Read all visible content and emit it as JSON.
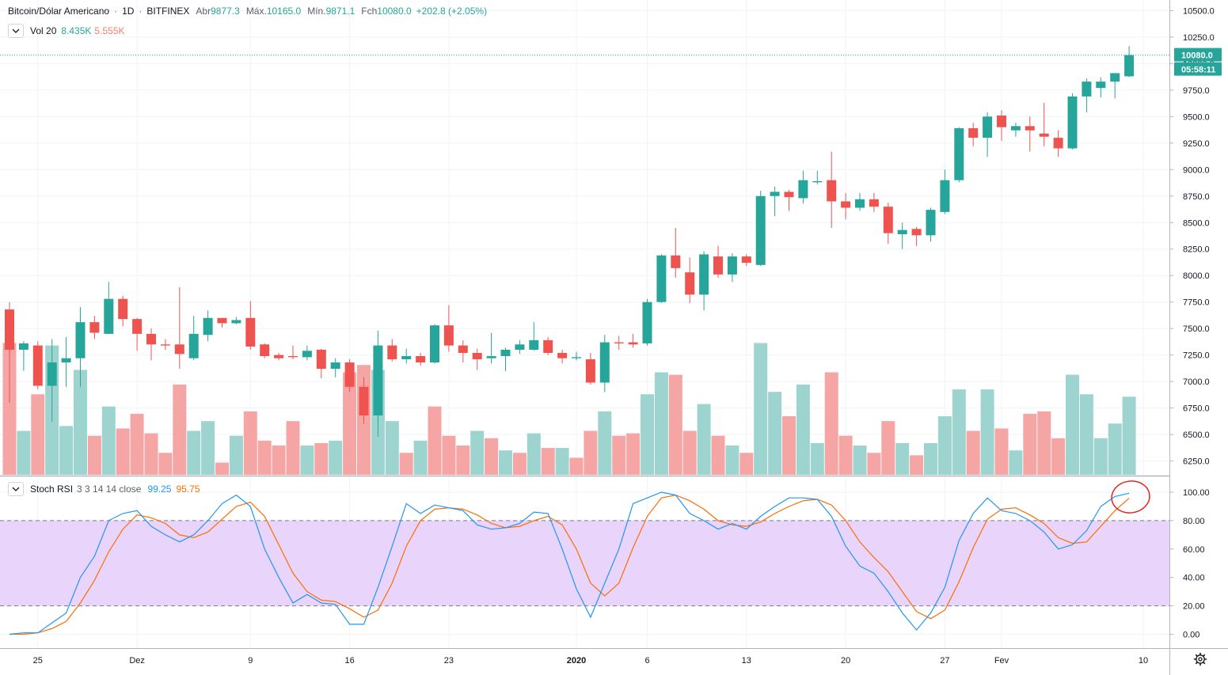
{
  "header": {
    "symbol": "Bitcoin/Dólar Americano",
    "interval": "1D",
    "exchange": "BITFINEX",
    "open_label": "Abr",
    "open": "9877.3",
    "high_label": "Máx.",
    "high": "10165.0",
    "low_label": "Mín.",
    "low": "9871.1",
    "close_label": "Fch",
    "close": "10080.0",
    "change": "+202.8 (+2.05%)"
  },
  "volume_legend": {
    "label": "Vol 20",
    "value1": "8.435K",
    "value2": "5.555K"
  },
  "rsi_legend": {
    "label": "Stoch RSI",
    "params": "3 3 14 14 close",
    "k_value": "99.25",
    "d_value": "95.75"
  },
  "colors": {
    "up": "#26a69a",
    "down": "#ef5350",
    "vol_up": "#9ed4cf",
    "vol_down": "#f5a6a4",
    "k_line": "#2196f3",
    "d_line": "#ff6d00",
    "band": "#e9d4fb",
    "annotation": "#e0261b"
  },
  "chart_data": [
    {
      "type": "candlestick",
      "price_axis_ticks": [
        "10500.0",
        "10250.0",
        "10000.0",
        "9750.0",
        "9500.0",
        "9250.0",
        "9000.0",
        "8750.0",
        "8500.0",
        "8250.0",
        "8000.0",
        "7750.0",
        "7500.0",
        "7250.0",
        "7000.0",
        "6750.0",
        "6500.0",
        "6250.0"
      ],
      "ylim": [
        6120,
        10600
      ],
      "last_price_label": "10080.0",
      "countdown_label": "05:58:11",
      "time_axis_labels": [
        {
          "index": 2,
          "label": "25"
        },
        {
          "index": 9,
          "label": "Dez"
        },
        {
          "index": 17,
          "label": "9"
        },
        {
          "index": 24,
          "label": "16"
        },
        {
          "index": 31,
          "label": "23"
        },
        {
          "index": 40,
          "label": "2020"
        },
        {
          "index": 45,
          "label": "6"
        },
        {
          "index": 52,
          "label": "13"
        },
        {
          "index": 59,
          "label": "20"
        },
        {
          "index": 66,
          "label": "27"
        },
        {
          "index": 70,
          "label": "Fev"
        },
        {
          "index": 80,
          "label": "10"
        }
      ],
      "candles": [
        [
          7680,
          7750,
          6800,
          7300
        ],
        [
          7300,
          7380,
          7100,
          7360
        ],
        [
          7340,
          7380,
          6930,
          6960
        ],
        [
          6960,
          7400,
          6620,
          7180
        ],
        [
          7180,
          7420,
          6950,
          7220
        ],
        [
          7220,
          7700,
          6950,
          7560
        ],
        [
          7560,
          7620,
          7400,
          7460
        ],
        [
          7450,
          7940,
          7450,
          7780
        ],
        [
          7780,
          7810,
          7520,
          7590
        ],
        [
          7590,
          7600,
          7290,
          7450
        ],
        [
          7450,
          7500,
          7200,
          7350
        ],
        [
          7350,
          7400,
          7300,
          7340
        ],
        [
          7350,
          7890,
          7120,
          7260
        ],
        [
          7220,
          7620,
          7200,
          7450
        ],
        [
          7440,
          7670,
          7380,
          7600
        ],
        [
          7600,
          7600,
          7510,
          7550
        ],
        [
          7550,
          7610,
          7540,
          7580
        ],
        [
          7600,
          7760,
          7300,
          7330
        ],
        [
          7350,
          7360,
          7220,
          7240
        ],
        [
          7250,
          7270,
          7200,
          7220
        ],
        [
          7240,
          7340,
          7210,
          7230
        ],
        [
          7230,
          7340,
          7200,
          7290
        ],
        [
          7300,
          7310,
          7030,
          7120
        ],
        [
          7120,
          7220,
          7040,
          7180
        ],
        [
          7180,
          7210,
          6900,
          6950
        ],
        [
          6950,
          7040,
          6600,
          6680
        ],
        [
          6680,
          7480,
          6480,
          7340
        ],
        [
          7340,
          7400,
          7190,
          7210
        ],
        [
          7210,
          7310,
          7170,
          7240
        ],
        [
          7240,
          7270,
          7150,
          7180
        ],
        [
          7180,
          7540,
          7170,
          7530
        ],
        [
          7530,
          7720,
          7280,
          7340
        ],
        [
          7340,
          7390,
          7180,
          7270
        ],
        [
          7270,
          7310,
          7110,
          7210
        ],
        [
          7220,
          7460,
          7170,
          7240
        ],
        [
          7240,
          7320,
          7100,
          7300
        ],
        [
          7300,
          7390,
          7260,
          7350
        ],
        [
          7300,
          7560,
          7290,
          7390
        ],
        [
          7390,
          7420,
          7250,
          7270
        ],
        [
          7270,
          7300,
          7170,
          7220
        ],
        [
          7220,
          7280,
          7200,
          7230
        ],
        [
          7210,
          7270,
          6970,
          6990
        ],
        [
          6990,
          7440,
          6900,
          7370
        ],
        [
          7370,
          7430,
          7300,
          7360
        ],
        [
          7370,
          7450,
          7320,
          7350
        ],
        [
          7360,
          7780,
          7340,
          7750
        ],
        [
          7750,
          8200,
          7740,
          8190
        ],
        [
          8190,
          8450,
          7980,
          8070
        ],
        [
          8030,
          8170,
          7740,
          7820
        ],
        [
          7820,
          8230,
          7670,
          8200
        ],
        [
          8180,
          8280,
          7980,
          8010
        ],
        [
          8010,
          8210,
          7940,
          8180
        ],
        [
          8180,
          8200,
          8090,
          8120
        ],
        [
          8100,
          8800,
          8090,
          8750
        ],
        [
          8750,
          8840,
          8560,
          8790
        ],
        [
          8790,
          8810,
          8610,
          8740
        ],
        [
          8730,
          8990,
          8680,
          8900
        ],
        [
          8880,
          8990,
          8860,
          8890
        ],
        [
          8900,
          9170,
          8450,
          8700
        ],
        [
          8700,
          8780,
          8530,
          8640
        ],
        [
          8640,
          8780,
          8610,
          8720
        ],
        [
          8720,
          8780,
          8600,
          8650
        ],
        [
          8650,
          8690,
          8300,
          8400
        ],
        [
          8390,
          8500,
          8250,
          8430
        ],
        [
          8440,
          8460,
          8280,
          8380
        ],
        [
          8380,
          8640,
          8320,
          8620
        ],
        [
          8600,
          9000,
          8580,
          8900
        ],
        [
          8900,
          9400,
          8880,
          9390
        ],
        [
          9390,
          9440,
          9220,
          9300
        ],
        [
          9300,
          9540,
          9120,
          9500
        ],
        [
          9510,
          9560,
          9270,
          9400
        ],
        [
          9370,
          9440,
          9310,
          9410
        ],
        [
          9410,
          9500,
          9170,
          9370
        ],
        [
          9340,
          9630,
          9220,
          9310
        ],
        [
          9300,
          9370,
          9120,
          9200
        ],
        [
          9200,
          9720,
          9190,
          9690
        ],
        [
          9690,
          9860,
          9540,
          9830
        ],
        [
          9770,
          9870,
          9680,
          9830
        ],
        [
          9830,
          9880,
          9670,
          9910
        ],
        [
          9880,
          10165,
          9871,
          10080
        ]
      ],
      "volume": [
        {
          "value": 5.4,
          "dir": "down"
        },
        {
          "value": 1.8,
          "dir": "up"
        },
        {
          "value": 3.3,
          "dir": "down"
        },
        {
          "value": 5.3,
          "dir": "up"
        },
        {
          "value": 2.0,
          "dir": "up"
        },
        {
          "value": 4.3,
          "dir": "up"
        },
        {
          "value": 1.6,
          "dir": "down"
        },
        {
          "value": 2.8,
          "dir": "up"
        },
        {
          "value": 1.9,
          "dir": "down"
        },
        {
          "value": 2.5,
          "dir": "down"
        },
        {
          "value": 1.7,
          "dir": "down"
        },
        {
          "value": 0.9,
          "dir": "down"
        },
        {
          "value": 3.7,
          "dir": "down"
        },
        {
          "value": 1.8,
          "dir": "up"
        },
        {
          "value": 2.2,
          "dir": "up"
        },
        {
          "value": 0.5,
          "dir": "down"
        },
        {
          "value": 1.6,
          "dir": "up"
        },
        {
          "value": 2.6,
          "dir": "down"
        },
        {
          "value": 1.4,
          "dir": "down"
        },
        {
          "value": 1.2,
          "dir": "down"
        },
        {
          "value": 2.2,
          "dir": "down"
        },
        {
          "value": 1.2,
          "dir": "up"
        },
        {
          "value": 1.3,
          "dir": "down"
        },
        {
          "value": 1.4,
          "dir": "up"
        },
        {
          "value": 4.2,
          "dir": "down"
        },
        {
          "value": 4.5,
          "dir": "down"
        },
        {
          "value": 4.3,
          "dir": "up"
        },
        {
          "value": 2.2,
          "dir": "up"
        },
        {
          "value": 0.9,
          "dir": "down"
        },
        {
          "value": 1.4,
          "dir": "up"
        },
        {
          "value": 2.8,
          "dir": "down"
        },
        {
          "value": 1.6,
          "dir": "down"
        },
        {
          "value": 1.2,
          "dir": "down"
        },
        {
          "value": 1.8,
          "dir": "up"
        },
        {
          "value": 1.5,
          "dir": "down"
        },
        {
          "value": 1.0,
          "dir": "up"
        },
        {
          "value": 0.9,
          "dir": "down"
        },
        {
          "value": 1.7,
          "dir": "up"
        },
        {
          "value": 1.1,
          "dir": "down"
        },
        {
          "value": 1.1,
          "dir": "up"
        },
        {
          "value": 0.7,
          "dir": "down"
        },
        {
          "value": 1.8,
          "dir": "down"
        },
        {
          "value": 2.6,
          "dir": "up"
        },
        {
          "value": 1.6,
          "dir": "down"
        },
        {
          "value": 1.7,
          "dir": "down"
        },
        {
          "value": 3.3,
          "dir": "up"
        },
        {
          "value": 4.2,
          "dir": "up"
        },
        {
          "value": 4.1,
          "dir": "down"
        },
        {
          "value": 1.8,
          "dir": "down"
        },
        {
          "value": 2.9,
          "dir": "up"
        },
        {
          "value": 1.6,
          "dir": "down"
        },
        {
          "value": 1.2,
          "dir": "up"
        },
        {
          "value": 0.9,
          "dir": "down"
        },
        {
          "value": 5.4,
          "dir": "up"
        },
        {
          "value": 3.4,
          "dir": "up"
        },
        {
          "value": 2.4,
          "dir": "down"
        },
        {
          "value": 3.7,
          "dir": "up"
        },
        {
          "value": 1.3,
          "dir": "up"
        },
        {
          "value": 4.2,
          "dir": "down"
        },
        {
          "value": 1.6,
          "dir": "down"
        },
        {
          "value": 1.2,
          "dir": "up"
        },
        {
          "value": 0.9,
          "dir": "down"
        },
        {
          "value": 2.2,
          "dir": "down"
        },
        {
          "value": 1.3,
          "dir": "up"
        },
        {
          "value": 0.8,
          "dir": "down"
        },
        {
          "value": 1.3,
          "dir": "up"
        },
        {
          "value": 2.4,
          "dir": "up"
        },
        {
          "value": 3.5,
          "dir": "up"
        },
        {
          "value": 1.8,
          "dir": "down"
        },
        {
          "value": 3.5,
          "dir": "up"
        },
        {
          "value": 1.9,
          "dir": "down"
        },
        {
          "value": 1.0,
          "dir": "up"
        },
        {
          "value": 2.5,
          "dir": "down"
        },
        {
          "value": 2.6,
          "dir": "down"
        },
        {
          "value": 1.5,
          "dir": "down"
        },
        {
          "value": 4.1,
          "dir": "up"
        },
        {
          "value": 3.3,
          "dir": "up"
        },
        {
          "value": 1.5,
          "dir": "up"
        },
        {
          "value": 2.1,
          "dir": "up"
        },
        {
          "value": 3.2,
          "dir": "up"
        }
      ]
    },
    {
      "type": "line",
      "ylim": [
        -5,
        108
      ],
      "axis_ticks": [
        "100.00",
        "80.00",
        "60.00",
        "40.00",
        "20.00",
        "0.00"
      ],
      "bands": [
        20,
        80
      ],
      "series": [
        {
          "key": "k",
          "values": [
            0,
            1,
            1,
            8,
            15,
            40,
            55,
            80,
            85,
            87,
            76,
            70,
            65,
            70,
            80,
            92,
            98,
            90,
            60,
            40,
            22,
            28,
            22,
            21,
            7,
            7,
            33,
            62,
            92,
            85,
            91,
            89,
            87,
            77,
            74,
            75,
            78,
            86,
            85,
            60,
            32,
            12,
            36,
            60,
            92,
            96,
            100,
            98,
            85,
            80,
            74,
            78,
            74,
            83,
            90,
            96,
            96,
            95,
            83,
            62,
            48,
            43,
            30,
            15,
            3,
            15,
            33,
            66,
            85,
            96,
            87,
            85,
            80,
            72,
            60,
            63,
            73,
            90,
            97,
            99.25
          ]
        },
        {
          "key": "d",
          "values": [
            0,
            0,
            1,
            4,
            9,
            22,
            38,
            58,
            74,
            84,
            82,
            78,
            70,
            68,
            72,
            81,
            90,
            93,
            83,
            63,
            43,
            30,
            24,
            23,
            18,
            12,
            17,
            36,
            62,
            80,
            88,
            89,
            88,
            84,
            78,
            75,
            76,
            80,
            83,
            77,
            60,
            36,
            27,
            36,
            61,
            83,
            96,
            98,
            94,
            88,
            80,
            77,
            76,
            79,
            85,
            90,
            94,
            95,
            91,
            80,
            65,
            54,
            44,
            30,
            16,
            11,
            17,
            37,
            61,
            81,
            88,
            89,
            84,
            78,
            68,
            64,
            65,
            76,
            87,
            95.75
          ]
        }
      ]
    }
  ]
}
